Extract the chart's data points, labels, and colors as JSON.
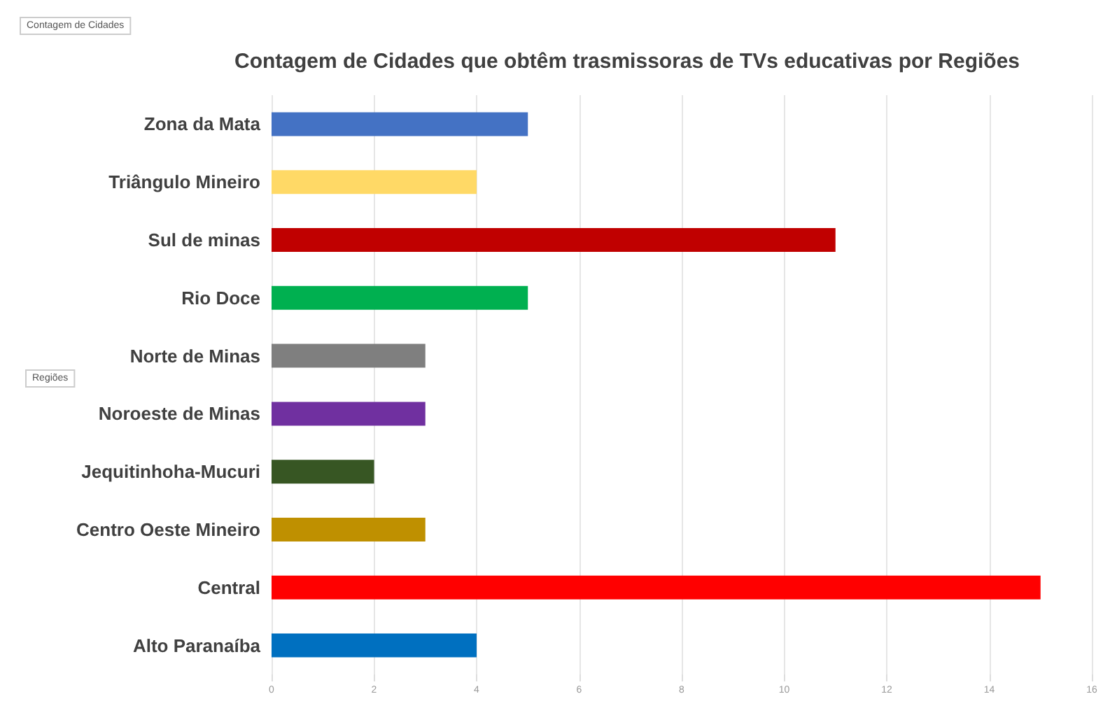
{
  "chart_data": {
    "type": "bar",
    "orientation": "horizontal",
    "title": "Contagem de Cidades que obtêm trasmissoras de TVs educativas por Regiões",
    "categories": [
      "Zona da Mata",
      "Triângulo Mineiro",
      "Sul de minas",
      "Rio Doce",
      "Norte de Minas",
      "Noroeste de Minas",
      "Jequitinhoha-Mucuri",
      "Centro Oeste Mineiro",
      "Central",
      "Alto Paranaíba"
    ],
    "values": [
      5,
      4,
      11,
      5,
      3,
      3,
      2,
      3,
      15,
      4
    ],
    "colors": [
      "#4472c4",
      "#ffd966",
      "#c00000",
      "#00b050",
      "#7f7f7f",
      "#7030a0",
      "#375623",
      "#bf9000",
      "#ff0000",
      "#0070c0"
    ],
    "xlim": [
      0,
      16
    ],
    "xticks": [
      0,
      2,
      4,
      6,
      8,
      10,
      12,
      14,
      16
    ],
    "grid": "x",
    "annotations": [
      "Contagem de Cidades",
      "Regiões"
    ]
  }
}
